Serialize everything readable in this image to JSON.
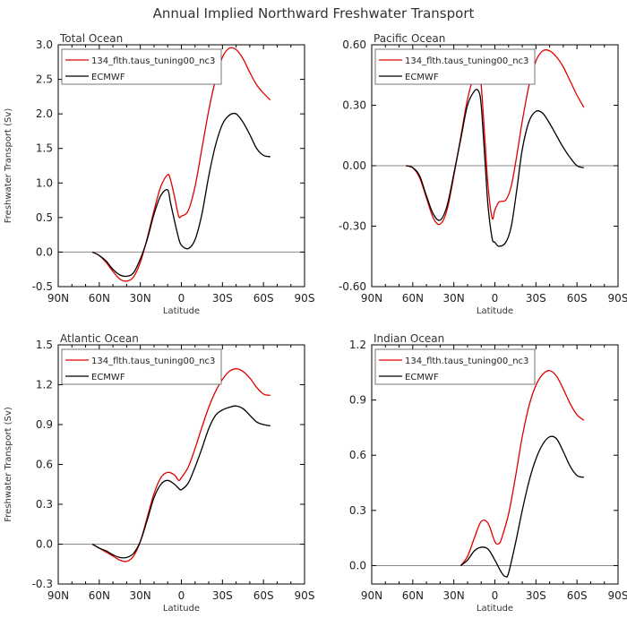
{
  "figure_title": "Annual Implied Northward Freshwater Transport",
  "colors": {
    "model": "#e00000",
    "obs": "#000000",
    "zero": "#888888",
    "axis": "#000000"
  },
  "chart_data": [
    {
      "type": "line",
      "title": "Total Ocean",
      "xlabel": "Latitude",
      "ylabel": "Freshwater Transport (Sv)",
      "xlim": [
        -90,
        90
      ],
      "x_ticks": [
        -90,
        -60,
        -30,
        0,
        30,
        60,
        90
      ],
      "x_tick_labels": [
        "90N",
        "60N",
        "30N",
        "0",
        "30S",
        "60S",
        "90S"
      ],
      "ylim": [
        -0.5,
        3.0
      ],
      "y_ticks": [
        -0.5,
        0.0,
        0.5,
        1.0,
        1.5,
        2.0,
        2.5,
        3.0
      ],
      "y_tick_labels": [
        "-0.5",
        "0.0",
        "0.5",
        "1.0",
        "1.5",
        "2.0",
        "2.5",
        "3.0"
      ],
      "legend": [
        "134_flth.taus_tuning00_nc3",
        "ECMWF"
      ],
      "series": [
        {
          "name": "134_flth.taus_tuning00_nc3",
          "color": "#e00000",
          "x": [
            -65,
            -60,
            -55,
            -50,
            -45,
            -40,
            -35,
            -30,
            -25,
            -20,
            -15,
            -10,
            -8,
            -5,
            -2,
            0,
            5,
            10,
            15,
            20,
            25,
            30,
            35,
            40,
            45,
            50,
            55,
            60,
            65
          ],
          "y": [
            0.0,
            -0.05,
            -0.15,
            -0.28,
            -0.39,
            -0.42,
            -0.36,
            -0.15,
            0.2,
            0.6,
            0.95,
            1.12,
            1.05,
            0.8,
            0.52,
            0.52,
            0.6,
            0.95,
            1.5,
            2.05,
            2.5,
            2.82,
            2.95,
            2.93,
            2.8,
            2.6,
            2.42,
            2.3,
            2.2
          ]
        },
        {
          "name": "ECMWF",
          "color": "#000000",
          "x": [
            -65,
            -60,
            -55,
            -50,
            -45,
            -40,
            -35,
            -30,
            -25,
            -20,
            -15,
            -10,
            -8,
            -5,
            -2,
            0,
            5,
            10,
            15,
            20,
            25,
            30,
            35,
            40,
            45,
            50,
            55,
            60,
            65
          ],
          "y": [
            0.0,
            -0.05,
            -0.13,
            -0.25,
            -0.33,
            -0.35,
            -0.3,
            -0.1,
            0.18,
            0.55,
            0.82,
            0.9,
            0.72,
            0.45,
            0.2,
            0.1,
            0.05,
            0.18,
            0.55,
            1.1,
            1.55,
            1.85,
            1.98,
            2.0,
            1.88,
            1.7,
            1.5,
            1.4,
            1.38
          ]
        }
      ]
    },
    {
      "type": "line",
      "title": "Pacific Ocean",
      "xlabel": "Latitude",
      "ylabel": "",
      "xlim": [
        -90,
        90
      ],
      "x_ticks": [
        -90,
        -60,
        -30,
        0,
        30,
        60,
        90
      ],
      "x_tick_labels": [
        "90N",
        "60N",
        "30N",
        "0",
        "30S",
        "60S",
        "90S"
      ],
      "ylim": [
        -0.6,
        0.6
      ],
      "y_ticks": [
        -0.6,
        -0.3,
        0.0,
        0.3,
        0.6
      ],
      "y_tick_labels": [
        "-0.60",
        "-0.30",
        "0.00",
        "0.30",
        "0.60"
      ],
      "legend": [
        "134_flth.taus_tuning00_nc3",
        "ECMWF"
      ],
      "series": [
        {
          "name": "134_flth.taus_tuning00_nc3",
          "color": "#e00000",
          "x": [
            -65,
            -60,
            -55,
            -50,
            -45,
            -40,
            -35,
            -30,
            -25,
            -20,
            -15,
            -12,
            -10,
            -7,
            -5,
            -2,
            0,
            3,
            8,
            12,
            16,
            20,
            25,
            30,
            35,
            40,
            45,
            50,
            55,
            60,
            65
          ],
          "y": [
            0.0,
            -0.01,
            -0.06,
            -0.16,
            -0.26,
            -0.29,
            -0.22,
            -0.05,
            0.14,
            0.33,
            0.45,
            0.47,
            0.4,
            0.1,
            -0.1,
            -0.26,
            -0.22,
            -0.18,
            -0.17,
            -0.1,
            0.05,
            0.22,
            0.4,
            0.52,
            0.57,
            0.57,
            0.54,
            0.49,
            0.42,
            0.35,
            0.29
          ]
        },
        {
          "name": "ECMWF",
          "color": "#000000",
          "x": [
            -65,
            -60,
            -55,
            -50,
            -45,
            -40,
            -35,
            -30,
            -25,
            -20,
            -15,
            -12,
            -10,
            -7,
            -5,
            -2,
            0,
            3,
            8,
            12,
            16,
            20,
            25,
            30,
            35,
            40,
            45,
            50,
            55,
            60,
            65
          ],
          "y": [
            0.0,
            -0.01,
            -0.05,
            -0.15,
            -0.24,
            -0.27,
            -0.2,
            -0.04,
            0.13,
            0.3,
            0.37,
            0.37,
            0.3,
            0.0,
            -0.2,
            -0.36,
            -0.38,
            -0.4,
            -0.38,
            -0.3,
            -0.12,
            0.08,
            0.22,
            0.27,
            0.26,
            0.21,
            0.15,
            0.09,
            0.04,
            0.0,
            -0.01
          ]
        }
      ]
    },
    {
      "type": "line",
      "title": "Atlantic Ocean",
      "xlabel": "Latitude",
      "ylabel": "Freshwater Transport (Sv)",
      "xlim": [
        -90,
        90
      ],
      "x_ticks": [
        -90,
        -60,
        -30,
        0,
        30,
        60,
        90
      ],
      "x_tick_labels": [
        "90N",
        "60N",
        "30N",
        "0",
        "30S",
        "60S",
        "90S"
      ],
      "ylim": [
        -0.3,
        1.5
      ],
      "y_ticks": [
        -0.3,
        0.0,
        0.3,
        0.6,
        0.9,
        1.2,
        1.5
      ],
      "y_tick_labels": [
        "-0.3",
        "0.0",
        "0.3",
        "0.6",
        "0.9",
        "1.2",
        "1.5"
      ],
      "legend": [
        "134_flth.taus_tuning00_nc3",
        "ECMWF"
      ],
      "series": [
        {
          "name": "134_flth.taus_tuning00_nc3",
          "color": "#e00000",
          "x": [
            -65,
            -60,
            -55,
            -50,
            -45,
            -40,
            -35,
            -30,
            -25,
            -20,
            -15,
            -10,
            -5,
            -2,
            0,
            5,
            10,
            15,
            20,
            25,
            30,
            35,
            40,
            45,
            50,
            55,
            60,
            65
          ],
          "y": [
            0.0,
            -0.03,
            -0.06,
            -0.09,
            -0.12,
            -0.13,
            -0.09,
            0.02,
            0.2,
            0.38,
            0.5,
            0.54,
            0.52,
            0.48,
            0.5,
            0.58,
            0.72,
            0.88,
            1.03,
            1.15,
            1.24,
            1.3,
            1.32,
            1.3,
            1.25,
            1.18,
            1.13,
            1.12
          ]
        },
        {
          "name": "ECMWF",
          "color": "#000000",
          "x": [
            -65,
            -60,
            -55,
            -50,
            -45,
            -40,
            -35,
            -30,
            -25,
            -20,
            -15,
            -10,
            -5,
            -2,
            0,
            5,
            10,
            15,
            20,
            25,
            30,
            35,
            40,
            45,
            50,
            55,
            60,
            65
          ],
          "y": [
            0.0,
            -0.03,
            -0.05,
            -0.08,
            -0.1,
            -0.1,
            -0.07,
            0.02,
            0.18,
            0.35,
            0.45,
            0.48,
            0.45,
            0.42,
            0.41,
            0.46,
            0.58,
            0.72,
            0.87,
            0.97,
            1.01,
            1.03,
            1.04,
            1.02,
            0.97,
            0.92,
            0.9,
            0.89
          ]
        }
      ]
    },
    {
      "type": "line",
      "title": "Indian Ocean",
      "xlabel": "Latitude",
      "ylabel": "",
      "xlim": [
        -90,
        90
      ],
      "x_ticks": [
        -90,
        -60,
        -30,
        0,
        30,
        60,
        90
      ],
      "x_tick_labels": [
        "90N",
        "60N",
        "30N",
        "0",
        "30S",
        "60S",
        "90S"
      ],
      "ylim": [
        -0.1,
        1.2
      ],
      "y_ticks": [
        0.0,
        0.3,
        0.6,
        0.9,
        1.2
      ],
      "y_tick_labels": [
        "0.0",
        "0.3",
        "0.6",
        "0.9",
        "1.2"
      ],
      "legend": [
        "134_flth.taus_tuning00_nc3",
        "ECMWF"
      ],
      "series": [
        {
          "name": "134_flth.taus_tuning00_nc3",
          "color": "#e00000",
          "x": [
            -25,
            -20,
            -15,
            -10,
            -5,
            0,
            3,
            5,
            10,
            15,
            20,
            25,
            30,
            35,
            40,
            45,
            50,
            55,
            60,
            65
          ],
          "y": [
            0.0,
            0.05,
            0.15,
            0.24,
            0.23,
            0.13,
            0.12,
            0.15,
            0.28,
            0.48,
            0.7,
            0.87,
            0.98,
            1.04,
            1.06,
            1.03,
            0.96,
            0.88,
            0.82,
            0.79
          ]
        },
        {
          "name": "ECMWF",
          "color": "#000000",
          "x": [
            -25,
            -20,
            -15,
            -10,
            -5,
            0,
            5,
            8,
            10,
            15,
            20,
            25,
            30,
            35,
            40,
            45,
            50,
            55,
            60,
            65
          ],
          "y": [
            0.0,
            0.03,
            0.08,
            0.1,
            0.09,
            0.03,
            -0.04,
            -0.06,
            -0.04,
            0.12,
            0.3,
            0.46,
            0.58,
            0.66,
            0.7,
            0.69,
            0.62,
            0.54,
            0.49,
            0.48
          ]
        }
      ]
    }
  ]
}
